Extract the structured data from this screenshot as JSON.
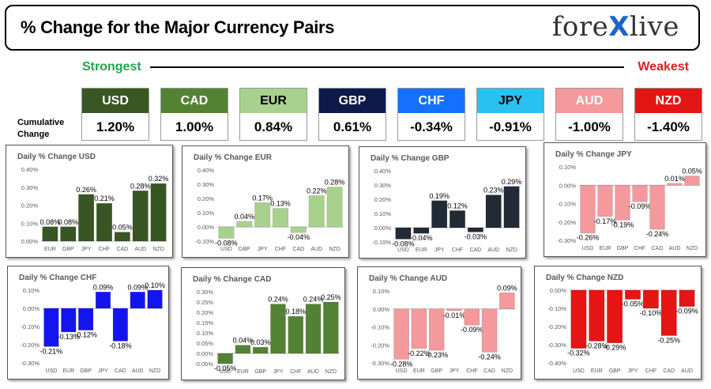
{
  "header": {
    "title": "% Change for the Major Currency Pairs",
    "logo": {
      "left": "fore",
      "x": "X",
      "right": "live"
    }
  },
  "scale": {
    "strongest": "Strongest",
    "weakest": "Weakest"
  },
  "cumulative_label": "Cumulative Change",
  "cards": [
    {
      "code": "USD",
      "value": "1.20%",
      "bg": "#385723",
      "fg": "#ffffff"
    },
    {
      "code": "CAD",
      "value": "1.00%",
      "bg": "#548235",
      "fg": "#ffffff"
    },
    {
      "code": "EUR",
      "value": "0.84%",
      "bg": "#a9d18e",
      "fg": "#000000"
    },
    {
      "code": "GBP",
      "value": "0.61%",
      "bg": "#0d1a4a",
      "fg": "#ffffff"
    },
    {
      "code": "CHF",
      "value": "-0.34%",
      "bg": "#1570ff",
      "fg": "#ffffff"
    },
    {
      "code": "JPY",
      "value": "-0.91%",
      "bg": "#29c2f0",
      "fg": "#000000"
    },
    {
      "code": "AUD",
      "value": "-1.00%",
      "bg": "#f4999c",
      "fg": "#ffffff"
    },
    {
      "code": "NZD",
      "value": "-1.40%",
      "bg": "#e51515",
      "fg": "#ffffff"
    }
  ],
  "chart_data": [
    {
      "type": "bar",
      "title": "Daily % Change USD",
      "categories": [
        "EUR",
        "GBP",
        "JPY",
        "CHF",
        "CAD",
        "AUD",
        "NZD"
      ],
      "values": [
        0.08,
        0.08,
        0.26,
        0.21,
        0.05,
        0.28,
        0.32
      ],
      "labels": [
        "0.08%",
        "0.08%",
        "0.26%",
        "0.21%",
        "0.05%",
        "0.28%",
        "0.32%"
      ],
      "ticks": [
        "0.00%",
        "0.10%",
        "0.20%",
        "0.30%",
        "0.40%"
      ],
      "tick_values": [
        0,
        0.1,
        0.2,
        0.3,
        0.4
      ],
      "ylim": [
        0,
        0.4
      ],
      "color": "#375623",
      "cat_at_zero": false
    },
    {
      "type": "bar",
      "title": "Daily % Change EUR",
      "categories": [
        "USD",
        "GBP",
        "JPY",
        "CHF",
        "CAD",
        "AUD",
        "NZD"
      ],
      "values": [
        -0.08,
        0.04,
        0.17,
        0.13,
        -0.04,
        0.22,
        0.28
      ],
      "labels": [
        "-0.08%",
        "0.04%",
        "0.17%",
        "0.13%",
        "-0.04%",
        "0.22%",
        "0.28%"
      ],
      "ticks": [
        "-0.10%",
        "0.00%",
        "0.10%",
        "0.20%",
        "0.30%",
        "0.40%"
      ],
      "tick_values": [
        -0.1,
        0,
        0.1,
        0.2,
        0.3,
        0.4
      ],
      "ylim": [
        -0.1,
        0.4
      ],
      "color": "#a9d18e",
      "cat_at_zero": false
    },
    {
      "type": "bar",
      "title": "Daily % Change GBP",
      "categories": [
        "USD",
        "EUR",
        "JPY",
        "CHF",
        "CAD",
        "AUD",
        "NZD"
      ],
      "values": [
        -0.08,
        -0.04,
        0.19,
        0.12,
        -0.03,
        0.23,
        0.29
      ],
      "labels": [
        "-0.08%",
        "-0.04%",
        "0.19%",
        "0.12%",
        "-0.03%",
        "0.23%",
        "0.29%"
      ],
      "ticks": [
        "-0.10%",
        "0.00%",
        "0.10%",
        "0.20%",
        "0.30%",
        "0.40%"
      ],
      "tick_values": [
        -0.1,
        0,
        0.1,
        0.2,
        0.3,
        0.4
      ],
      "ylim": [
        -0.1,
        0.4
      ],
      "color": "#222a35",
      "cat_at_zero": false
    },
    {
      "type": "bar",
      "title": "Daily % Change JPY",
      "categories": [
        "USD",
        "EUR",
        "GBP",
        "CHF",
        "CAD",
        "AUD",
        "NZD"
      ],
      "values": [
        -0.26,
        -0.17,
        -0.19,
        -0.09,
        -0.24,
        0.01,
        0.05
      ],
      "labels": [
        "-0.26%",
        "-0.17%",
        "-0.19%",
        "-0.09%",
        "-0.24%",
        "0.01%",
        "0.05%"
      ],
      "ticks": [
        "-0.30%",
        "-0.20%",
        "-0.10%",
        "0.00%",
        "0.10%"
      ],
      "tick_values": [
        -0.3,
        -0.2,
        -0.1,
        0,
        0.1
      ],
      "ylim": [
        -0.3,
        0.1
      ],
      "color": "#f4999c",
      "cat_at_zero": true
    },
    {
      "type": "bar",
      "title": "Daily % Change CHF",
      "categories": [
        "USD",
        "EUR",
        "GBP",
        "JPY",
        "CAD",
        "AUD",
        "NZD"
      ],
      "values": [
        -0.21,
        -0.13,
        -0.12,
        0.09,
        -0.18,
        0.09,
        0.1
      ],
      "labels": [
        "-0.21%",
        "-0.13%",
        "-0.12%",
        "0.09%",
        "-0.18%",
        "0.09%",
        "0.10%"
      ],
      "ticks": [
        "-0.30%",
        "-0.20%",
        "-0.10%",
        "0.00%",
        "0.10%"
      ],
      "tick_values": [
        -0.3,
        -0.2,
        -0.1,
        0,
        0.1
      ],
      "ylim": [
        -0.3,
        0.1
      ],
      "color": "#1414f0",
      "cat_at_zero": false
    },
    {
      "type": "bar",
      "title": "Daily % Change CAD",
      "categories": [
        "USD",
        "EUR",
        "GBP",
        "JPY",
        "CHF",
        "AUD",
        "NZD"
      ],
      "values": [
        -0.05,
        0.04,
        0.03,
        0.24,
        0.18,
        0.24,
        0.25
      ],
      "labels": [
        "-0.05%",
        "0.04%",
        "0.03%",
        "0.24%",
        "0.18%",
        "0.24%",
        "0.25%"
      ],
      "ticks": [
        "-0.05%",
        "0.00%",
        "0.05%",
        "0.10%",
        "0.15%",
        "0.20%",
        "0.25%",
        "0.30%"
      ],
      "tick_values": [
        -0.05,
        0,
        0.05,
        0.1,
        0.15,
        0.2,
        0.25,
        0.3
      ],
      "ylim": [
        -0.05,
        0.3
      ],
      "color": "#548235",
      "cat_at_zero": false
    },
    {
      "type": "bar",
      "title": "Daily % Change AUD",
      "categories": [
        "USD",
        "EUR",
        "GBP",
        "JPY",
        "CHF",
        "CAD",
        "NZD"
      ],
      "values": [
        -0.28,
        -0.22,
        -0.23,
        -0.01,
        -0.09,
        -0.24,
        0.09
      ],
      "labels": [
        "-0.28%",
        "-0.22%",
        "-0.23%",
        "-0.01%",
        "-0.09%",
        "-0.24%",
        "0.09%"
      ],
      "ticks": [
        "-0.30%",
        "-0.20%",
        "-0.10%",
        "0.00%",
        "0.10%"
      ],
      "tick_values": [
        -0.3,
        -0.2,
        -0.1,
        0,
        0.1
      ],
      "ylim": [
        -0.3,
        0.1
      ],
      "color": "#f4999c",
      "cat_at_zero": false
    },
    {
      "type": "bar",
      "title": "Daily % Change NZD",
      "categories": [
        "USD",
        "EUR",
        "GBP",
        "JPY",
        "CHF",
        "CAD",
        "AUD"
      ],
      "values": [
        -0.32,
        -0.28,
        -0.29,
        -0.05,
        -0.1,
        -0.25,
        -0.09
      ],
      "labels": [
        "-0.32%",
        "-0.28%",
        "-0.29%",
        "-0.05%",
        "-0.10%",
        "-0.25%",
        "-0.09%"
      ],
      "ticks": [
        "-0.40%",
        "-0.30%",
        "-0.20%",
        "-0.10%",
        "0.00%"
      ],
      "tick_values": [
        -0.4,
        -0.3,
        -0.2,
        -0.1,
        0
      ],
      "ylim": [
        -0.4,
        0
      ],
      "color": "#e51515",
      "cat_at_zero": false
    }
  ]
}
